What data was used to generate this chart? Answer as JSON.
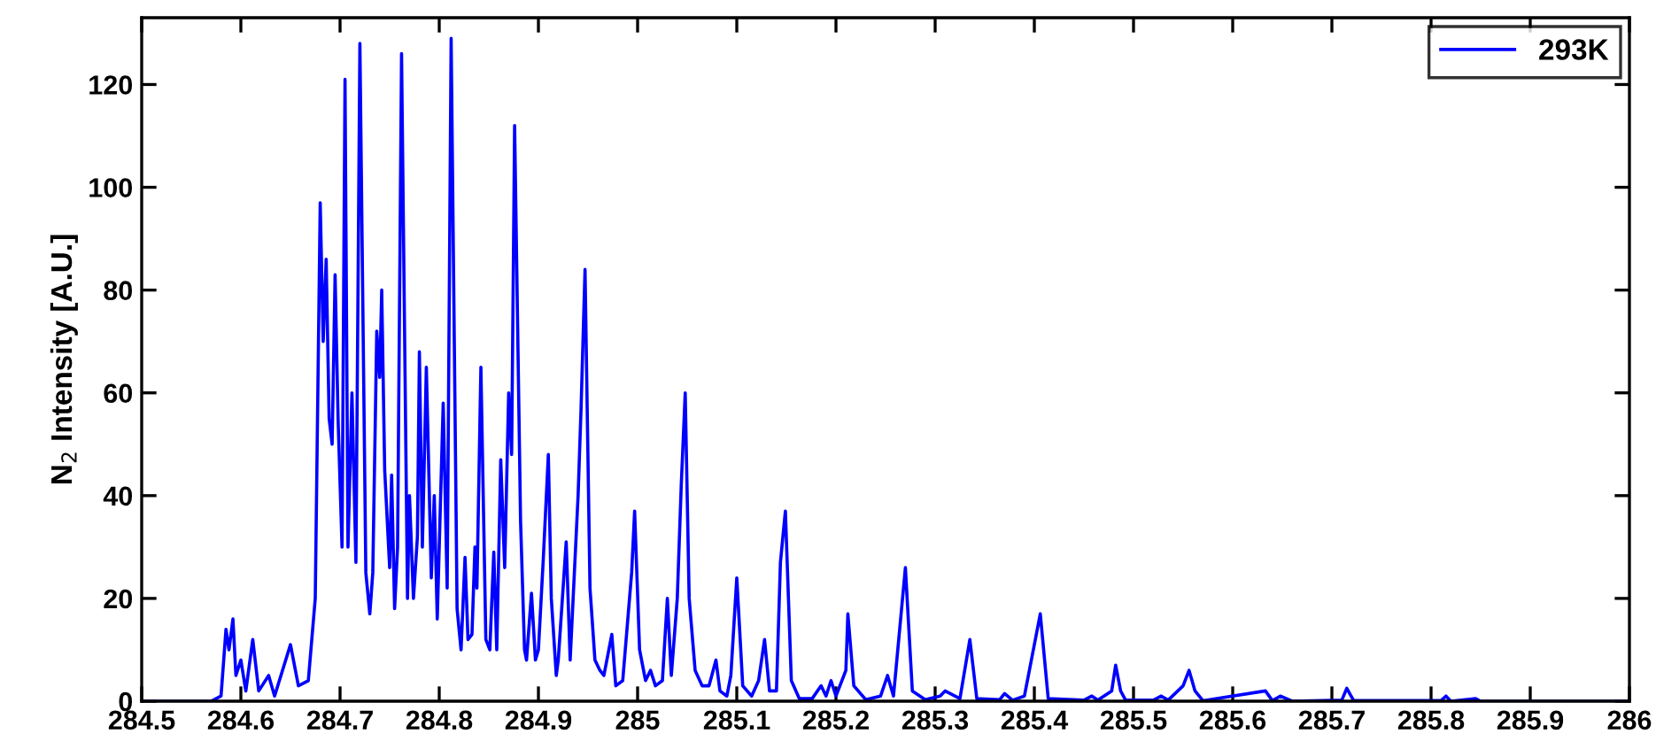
{
  "chart_data": {
    "type": "line",
    "ylabel": "N$_{2}$ Intensity [A.U.]",
    "xlim": [
      284.5,
      286
    ],
    "ylim": [
      0,
      133
    ],
    "xticks": [
      284.5,
      284.6,
      284.7,
      284.8,
      284.9,
      285,
      285.1,
      285.2,
      285.3,
      285.4,
      285.5,
      285.6,
      285.7,
      285.8,
      285.9,
      286
    ],
    "yticks": [
      0,
      20,
      40,
      60,
      80,
      100,
      120
    ],
    "grid": false,
    "legend": "top right",
    "line_style": "solid",
    "marker": "none",
    "series": [
      {
        "name": "293K",
        "color": "#0000ff",
        "x": [
          284.5,
          284.57,
          284.58,
          284.585,
          284.588,
          284.592,
          284.595,
          284.6,
          284.605,
          284.612,
          284.618,
          284.628,
          284.634,
          284.65,
          284.658,
          284.668,
          284.675,
          284.68,
          284.683,
          284.686,
          284.689,
          284.692,
          284.695,
          284.698,
          284.702,
          284.705,
          284.708,
          284.712,
          284.716,
          284.72,
          284.726,
          284.73,
          284.733,
          284.737,
          284.74,
          284.742,
          284.745,
          284.75,
          284.752,
          284.755,
          284.758,
          284.762,
          284.768,
          284.77,
          284.774,
          284.778,
          284.78,
          284.783,
          284.787,
          284.792,
          284.795,
          284.798,
          284.804,
          284.808,
          284.812,
          284.818,
          284.822,
          284.826,
          284.829,
          284.833,
          284.836,
          284.838,
          284.842,
          284.847,
          284.851,
          284.855,
          284.858,
          284.862,
          284.866,
          284.87,
          284.873,
          284.876,
          284.882,
          284.886,
          284.888,
          284.893,
          284.897,
          284.9,
          284.905,
          284.91,
          284.913,
          284.918,
          284.92,
          284.928,
          284.932,
          284.94,
          284.943,
          284.947,
          284.952,
          284.957,
          284.962,
          284.966,
          284.974,
          284.978,
          284.985,
          284.994,
          284.997,
          285.002,
          285.008,
          285.013,
          285.018,
          285.025,
          285.03,
          285.034,
          285.04,
          285.044,
          285.048,
          285.052,
          285.058,
          285.065,
          285.072,
          285.079,
          285.083,
          285.09,
          285.094,
          285.1,
          285.106,
          285.115,
          285.122,
          285.128,
          285.133,
          285.14,
          285.144,
          285.149,
          285.155,
          285.163,
          285.176,
          285.185,
          285.19,
          285.195,
          285.2,
          285.21,
          285.212,
          285.218,
          285.23,
          285.245,
          285.252,
          285.258,
          285.27,
          285.277,
          285.29,
          285.305,
          285.31,
          285.325,
          285.335,
          285.342,
          285.365,
          285.37,
          285.378,
          285.39,
          285.406,
          285.414,
          285.45,
          285.458,
          285.464,
          285.478,
          285.482,
          285.487,
          285.492,
          285.52,
          285.528,
          285.535,
          285.55,
          285.556,
          285.562,
          285.57,
          285.633,
          285.64,
          285.648,
          285.66,
          285.71,
          285.715,
          285.722,
          285.81,
          285.815,
          285.82,
          285.845,
          285.85,
          286
        ],
        "values": [
          0,
          0,
          1,
          14,
          10,
          16,
          5,
          8,
          2,
          12,
          2,
          5,
          1,
          11,
          3,
          4,
          20,
          97,
          70,
          86,
          55,
          50,
          83,
          55,
          30,
          121,
          30,
          60,
          27,
          128,
          25,
          17,
          25,
          72,
          63,
          80,
          45,
          26,
          44,
          18,
          30,
          126,
          20,
          40,
          20,
          32,
          68,
          30,
          65,
          24,
          40,
          16,
          58,
          22,
          129,
          18,
          10,
          28,
          12,
          13,
          30,
          22,
          65,
          12,
          10,
          29,
          10,
          47,
          26,
          60,
          48,
          112,
          35,
          10,
          8,
          21,
          8,
          10,
          28,
          48,
          20,
          5,
          8,
          31,
          8,
          40,
          57,
          84,
          22,
          8,
          6,
          5,
          13,
          3,
          4,
          25,
          37,
          10,
          4,
          6,
          3,
          4,
          20,
          5,
          20,
          42,
          60,
          20,
          6,
          3,
          3,
          8,
          2,
          1,
          5,
          24,
          3,
          1,
          4,
          12,
          2,
          2,
          27,
          37,
          4,
          0.5,
          0.5,
          3,
          1,
          4,
          1,
          6,
          17,
          3,
          0.3,
          1,
          5,
          1,
          26,
          2,
          0.3,
          1,
          2,
          0.5,
          12,
          0.5,
          0.3,
          1.5,
          0.2,
          1,
          17,
          0.5,
          0.2,
          1,
          0.2,
          2,
          7,
          2,
          0.2,
          0.2,
          1,
          0.2,
          3,
          6,
          2,
          0.1,
          2,
          0.1,
          1,
          0,
          0.2,
          2.5,
          0.1,
          0.1,
          1,
          0,
          0.5,
          0,
          0
        ]
      }
    ]
  }
}
